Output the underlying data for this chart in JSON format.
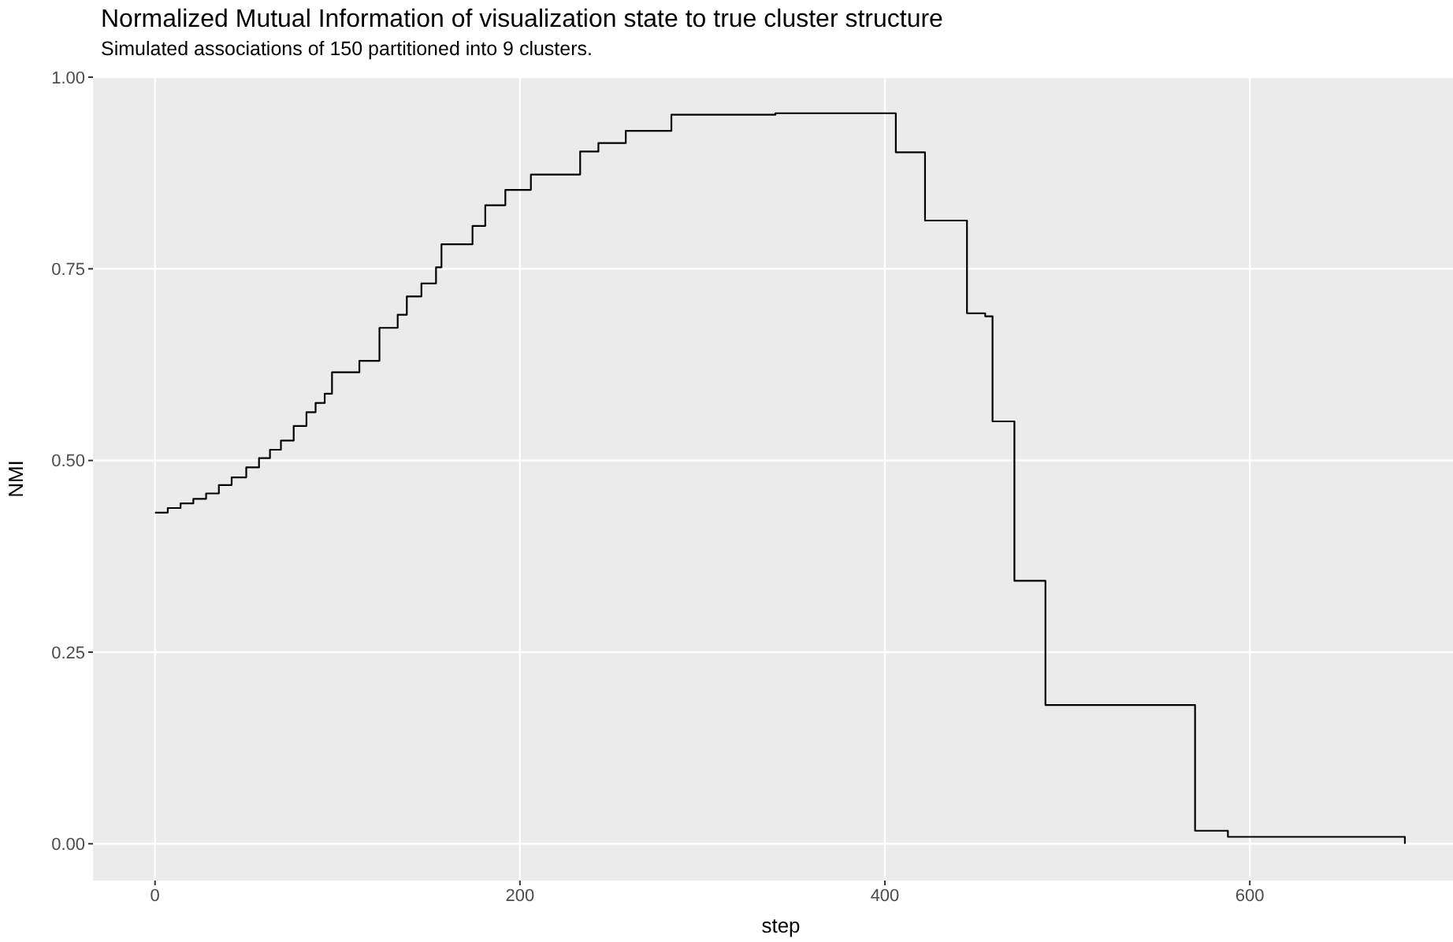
{
  "chart_data": {
    "type": "step",
    "title": "Normalized Mutual Information of visualization state to true cluster structure",
    "subtitle": "Simulated associations of 150 partitioned into 9 clusters.",
    "xlabel": "step",
    "ylabel": "NMI",
    "x": [
      0,
      7,
      14,
      21,
      28,
      35,
      42,
      50,
      57,
      63,
      69,
      76,
      83,
      88,
      93,
      97,
      112,
      123,
      133,
      138,
      146,
      154,
      157,
      174,
      181,
      192,
      206,
      233,
      243,
      258,
      283,
      340,
      406,
      422,
      445,
      455,
      459,
      471,
      488,
      570,
      588,
      685
    ],
    "series": [
      {
        "color": "#000000",
        "values": [
          0.432,
          0.438,
          0.444,
          0.45,
          0.457,
          0.468,
          0.478,
          0.491,
          0.503,
          0.514,
          0.526,
          0.545,
          0.563,
          0.575,
          0.587,
          0.615,
          0.63,
          0.673,
          0.69,
          0.714,
          0.731,
          0.752,
          0.782,
          0.806,
          0.833,
          0.853,
          0.873,
          0.903,
          0.914,
          0.93,
          0.951,
          0.953,
          0.902,
          0.813,
          0.692,
          0.688,
          0.551,
          0.343,
          0.181,
          0.017,
          0.009,
          0.0
        ]
      }
    ],
    "xlim": [
      -34,
      720
    ],
    "xticks": [
      0,
      200,
      400,
      600
    ],
    "ylim": [
      -0.048,
      1.0
    ],
    "yticks": [
      {
        "value": 0,
        "label": "0.00"
      },
      {
        "value": 0.25,
        "label": "0.25"
      },
      {
        "value": 0.5,
        "label": "0.50"
      },
      {
        "value": 0.75,
        "label": "0.75"
      },
      {
        "value": 1,
        "label": "1.00"
      }
    ],
    "grid": true,
    "line_style": "solid"
  }
}
